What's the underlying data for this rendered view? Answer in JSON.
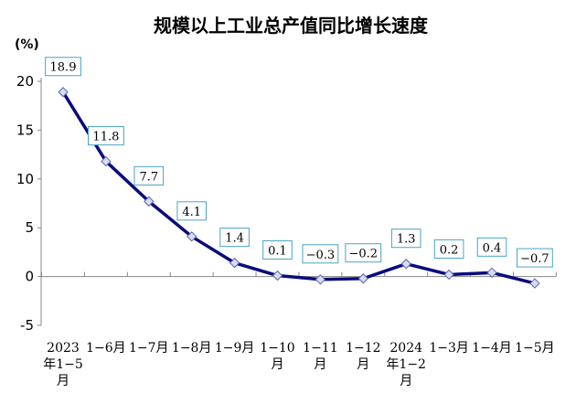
{
  "colors": {
    "line": "#0b0b7d",
    "marker_fill": "#d6dcf5",
    "marker_stroke": "#5a64a8",
    "label_border": "#4aa3c7"
  },
  "chart_data": {
    "type": "line",
    "title": "规模以上工业总产值同比增长速度",
    "unit_label": "(%)",
    "categories": [
      [
        "2023",
        "年1−5",
        "月"
      ],
      [
        "1−6月"
      ],
      [
        "1−7月"
      ],
      [
        "1−8月"
      ],
      [
        "1−9月"
      ],
      [
        "1−10",
        "月"
      ],
      [
        "1−11",
        "月"
      ],
      [
        "1−12",
        "月"
      ],
      [
        "2024",
        "年1−2",
        "月"
      ],
      [
        "1−3月"
      ],
      [
        "1−4月"
      ],
      [
        "1−5月"
      ]
    ],
    "values": [
      18.9,
      11.8,
      7.7,
      4.1,
      1.4,
      0.1,
      -0.3,
      -0.2,
      1.3,
      0.2,
      0.4,
      -0.7
    ],
    "value_labels": [
      "18.9",
      "11.8",
      "7.7",
      "4.1",
      "1.4",
      "0.1",
      "−0.3",
      "−0.2",
      "1.3",
      "0.2",
      "0.4",
      "−0.7"
    ],
    "ylim": [
      -5,
      20
    ],
    "yticks": [
      "20",
      "15",
      "10",
      "5",
      "0",
      "-5"
    ],
    "ytick_values": [
      20,
      15,
      10,
      5,
      0,
      -5
    ],
    "grid": false
  }
}
